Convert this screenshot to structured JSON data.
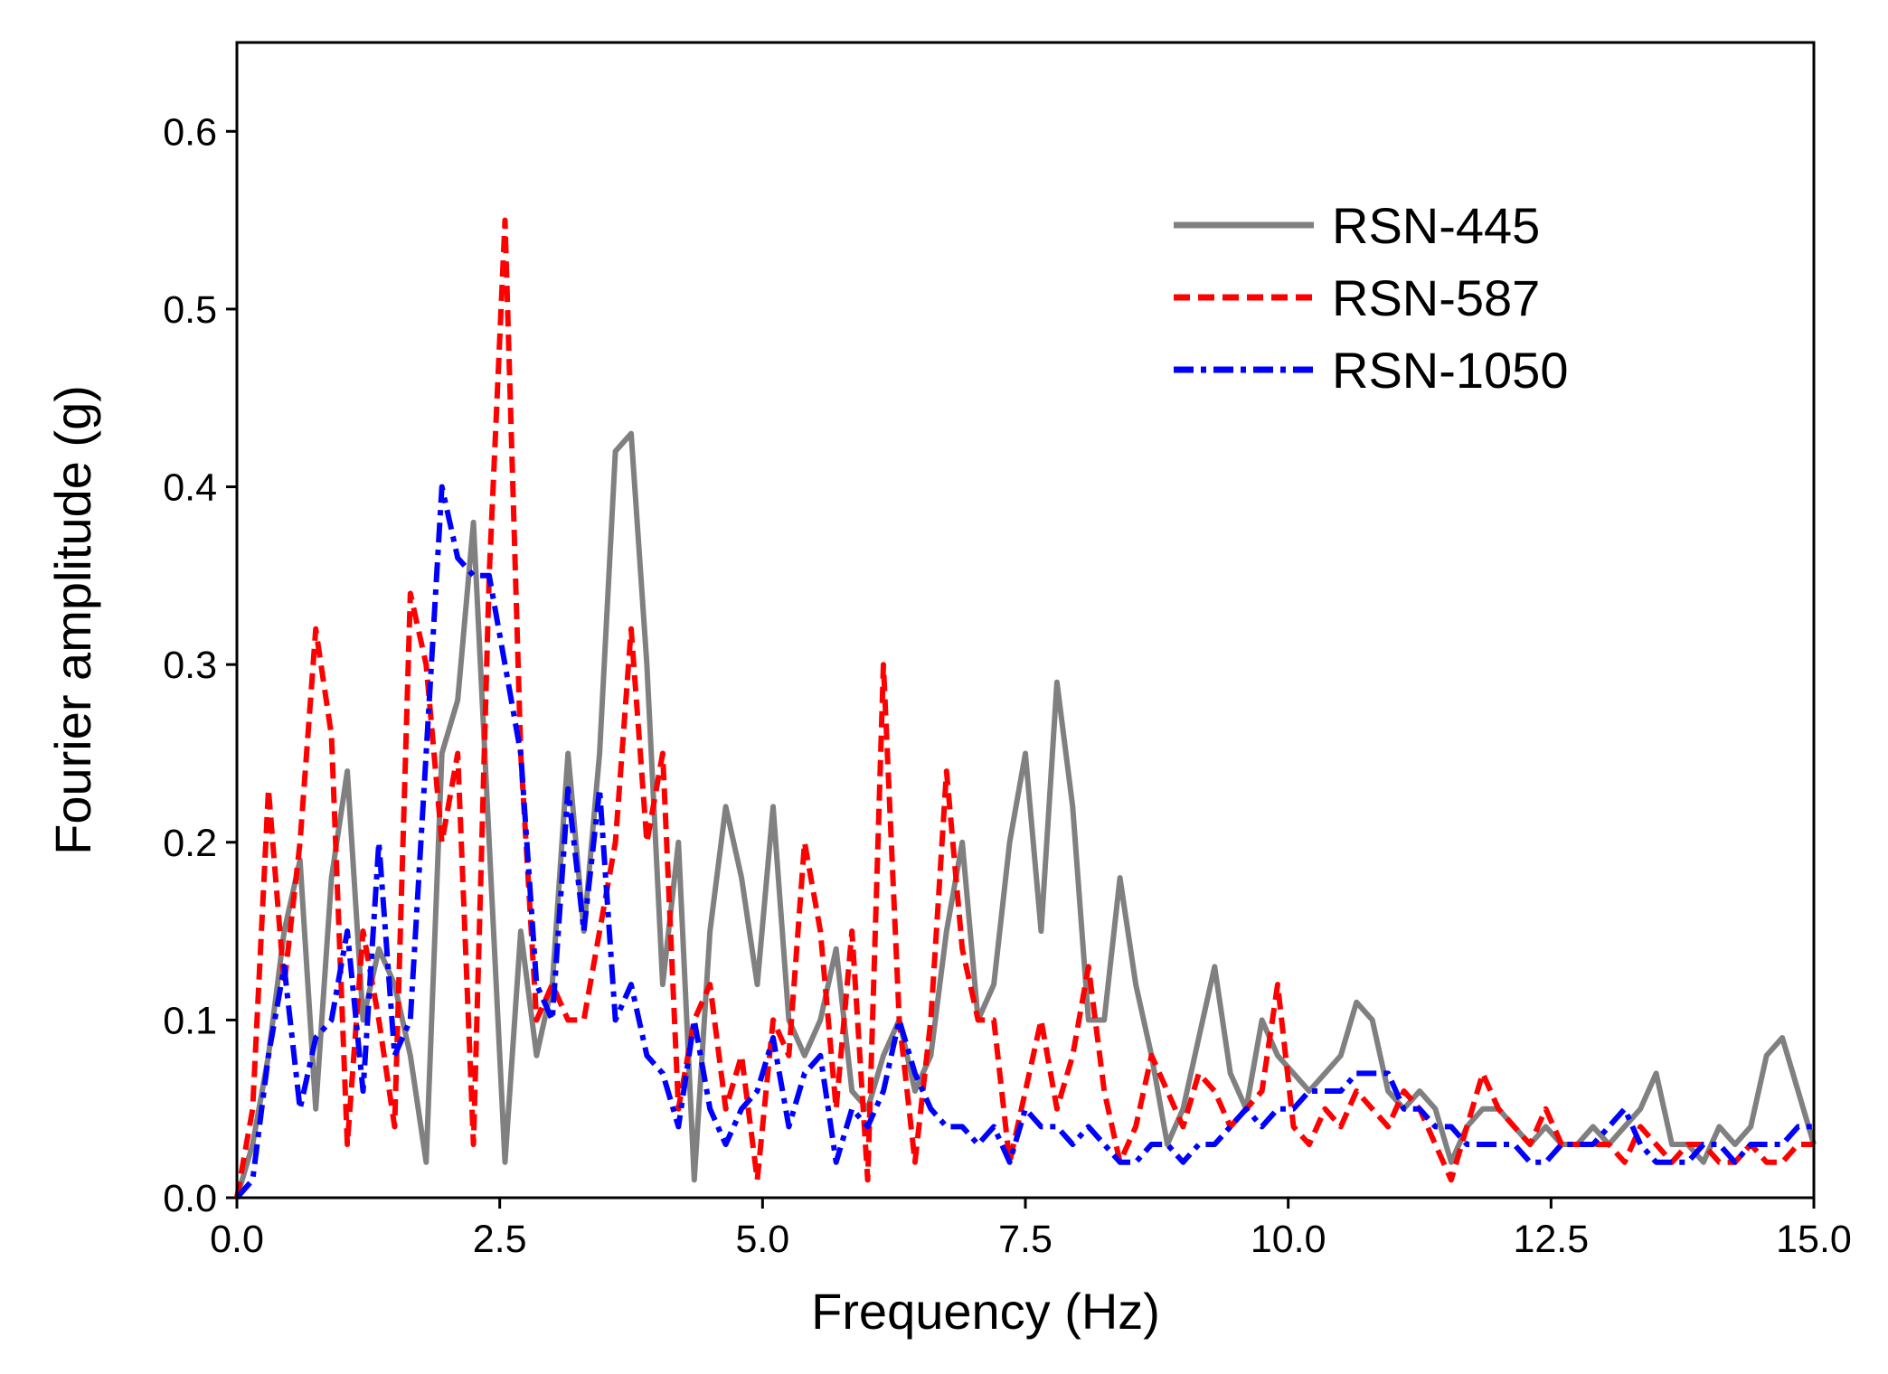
{
  "chart_data": {
    "type": "line",
    "x_label": "Frequency (Hz)",
    "y_label": "Fourier amplitude (g)",
    "x": [
      0,
      0.15,
      0.3,
      0.45,
      0.6,
      0.75,
      0.9,
      1.05,
      1.2,
      1.35,
      1.5,
      1.65,
      1.8,
      1.95,
      2.1,
      2.25,
      2.4,
      2.55,
      2.7,
      2.85,
      3.0,
      3.15,
      3.3,
      3.45,
      3.6,
      3.75,
      3.9,
      4.05,
      4.2,
      4.35,
      4.5,
      4.65,
      4.8,
      4.95,
      5.1,
      5.25,
      5.4,
      5.55,
      5.7,
      5.85,
      6.0,
      6.15,
      6.3,
      6.45,
      6.6,
      6.75,
      6.9,
      7.05,
      7.2,
      7.35,
      7.5,
      7.65,
      7.8,
      7.95,
      8.1,
      8.25,
      8.4,
      8.55,
      8.7,
      8.85,
      9.0,
      9.15,
      9.3,
      9.45,
      9.6,
      9.75,
      9.9,
      10.05,
      10.2,
      10.35,
      10.5,
      10.65,
      10.8,
      10.95,
      11.1,
      11.25,
      11.4,
      11.55,
      11.7,
      11.85,
      12.0,
      12.15,
      12.3,
      12.45,
      12.6,
      12.75,
      12.9,
      13.05,
      13.2,
      13.35,
      13.5,
      13.65,
      13.8,
      13.95,
      14.1,
      14.25,
      14.4,
      14.55,
      14.7,
      14.85,
      15.0
    ],
    "series": [
      {
        "name": "RSN-445",
        "color": "#808080",
        "dash": "solid",
        "values": [
          0.0,
          0.03,
          0.08,
          0.15,
          0.19,
          0.05,
          0.18,
          0.24,
          0.1,
          0.14,
          0.12,
          0.08,
          0.02,
          0.25,
          0.28,
          0.38,
          0.2,
          0.02,
          0.15,
          0.08,
          0.12,
          0.25,
          0.15,
          0.25,
          0.42,
          0.43,
          0.3,
          0.12,
          0.2,
          0.01,
          0.15,
          0.22,
          0.18,
          0.12,
          0.22,
          0.1,
          0.08,
          0.1,
          0.14,
          0.06,
          0.05,
          0.08,
          0.1,
          0.06,
          0.08,
          0.15,
          0.2,
          0.1,
          0.12,
          0.2,
          0.25,
          0.15,
          0.29,
          0.22,
          0.1,
          0.1,
          0.18,
          0.12,
          0.08,
          0.03,
          0.05,
          0.09,
          0.13,
          0.07,
          0.05,
          0.1,
          0.08,
          0.07,
          0.06,
          0.07,
          0.08,
          0.11,
          0.1,
          0.06,
          0.05,
          0.06,
          0.05,
          0.02,
          0.04,
          0.05,
          0.05,
          0.04,
          0.03,
          0.04,
          0.03,
          0.03,
          0.04,
          0.03,
          0.04,
          0.05,
          0.07,
          0.03,
          0.03,
          0.02,
          0.04,
          0.03,
          0.04,
          0.08,
          0.09,
          0.06,
          0.03
        ]
      },
      {
        "name": "RSN-587",
        "color": "#ff0000",
        "dash": "dash",
        "values": [
          0.0,
          0.05,
          0.23,
          0.12,
          0.2,
          0.32,
          0.26,
          0.03,
          0.15,
          0.1,
          0.04,
          0.34,
          0.3,
          0.2,
          0.25,
          0.03,
          0.35,
          0.55,
          0.25,
          0.1,
          0.12,
          0.1,
          0.1,
          0.15,
          0.2,
          0.32,
          0.2,
          0.25,
          0.05,
          0.1,
          0.12,
          0.05,
          0.08,
          0.01,
          0.1,
          0.08,
          0.2,
          0.15,
          0.05,
          0.15,
          0.01,
          0.3,
          0.1,
          0.02,
          0.1,
          0.24,
          0.14,
          0.1,
          0.1,
          0.02,
          0.06,
          0.1,
          0.05,
          0.08,
          0.13,
          0.06,
          0.02,
          0.04,
          0.08,
          0.06,
          0.04,
          0.07,
          0.06,
          0.04,
          0.05,
          0.06,
          0.12,
          0.04,
          0.03,
          0.05,
          0.04,
          0.06,
          0.05,
          0.04,
          0.06,
          0.05,
          0.03,
          0.01,
          0.04,
          0.07,
          0.05,
          0.04,
          0.03,
          0.05,
          0.03,
          0.03,
          0.03,
          0.03,
          0.02,
          0.04,
          0.03,
          0.02,
          0.03,
          0.03,
          0.02,
          0.02,
          0.03,
          0.02,
          0.02,
          0.03,
          0.03
        ]
      },
      {
        "name": "RSN-1050",
        "color": "#0000ff",
        "dash": "dashdot",
        "values": [
          0.0,
          0.01,
          0.08,
          0.13,
          0.05,
          0.09,
          0.1,
          0.15,
          0.06,
          0.2,
          0.08,
          0.1,
          0.25,
          0.4,
          0.36,
          0.35,
          0.35,
          0.3,
          0.25,
          0.12,
          0.1,
          0.23,
          0.15,
          0.23,
          0.1,
          0.12,
          0.08,
          0.07,
          0.04,
          0.1,
          0.05,
          0.03,
          0.05,
          0.06,
          0.09,
          0.04,
          0.07,
          0.08,
          0.02,
          0.05,
          0.04,
          0.06,
          0.1,
          0.07,
          0.05,
          0.04,
          0.04,
          0.03,
          0.04,
          0.02,
          0.05,
          0.04,
          0.04,
          0.03,
          0.04,
          0.03,
          0.02,
          0.02,
          0.03,
          0.03,
          0.02,
          0.03,
          0.03,
          0.04,
          0.05,
          0.04,
          0.05,
          0.05,
          0.06,
          0.06,
          0.06,
          0.07,
          0.07,
          0.07,
          0.05,
          0.05,
          0.04,
          0.04,
          0.03,
          0.03,
          0.03,
          0.03,
          0.02,
          0.02,
          0.03,
          0.03,
          0.03,
          0.04,
          0.05,
          0.03,
          0.02,
          0.02,
          0.02,
          0.03,
          0.03,
          0.02,
          0.03,
          0.03,
          0.03,
          0.04,
          0.04
        ]
      }
    ],
    "xlim": [
      0,
      15
    ],
    "xticks": [
      {
        "value": 0,
        "label": "0.0"
      },
      2.5,
      {
        "value": 5,
        "label": "5.0"
      },
      7.5,
      {
        "value": 10,
        "label": "10.0"
      },
      12.5,
      {
        "value": 15,
        "label": "15.0"
      }
    ],
    "ylim": [
      0,
      0.65
    ],
    "yticks": [
      {
        "value": 0,
        "label": "0.0"
      },
      0.1,
      0.2,
      0.3,
      0.4,
      0.5,
      0.6
    ],
    "legend": "upper right"
  }
}
